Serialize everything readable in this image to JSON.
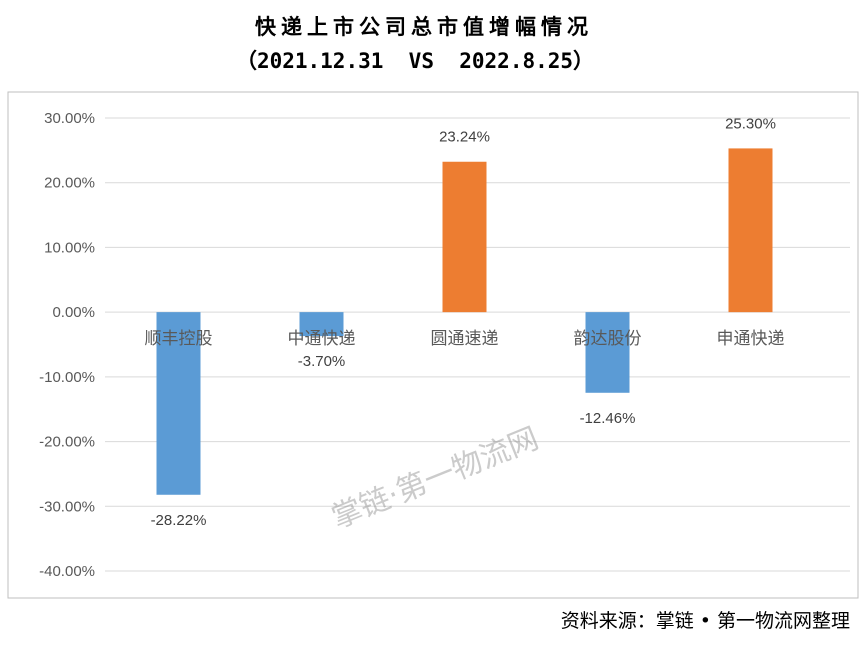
{
  "chart_data": {
    "type": "bar",
    "title": "快递上市公司总市值增幅情况",
    "subtitle": "（2021.12.31  VS  2022.8.25）",
    "categories": [
      "顺丰控股",
      "中通快递",
      "圆通速递",
      "韵达股份",
      "申通快递"
    ],
    "values": [
      -28.22,
      -3.7,
      23.24,
      -12.46,
      25.3
    ],
    "data_labels": [
      "-28.22%",
      "-3.70%",
      "23.24%",
      "-12.46%",
      "25.30%"
    ],
    "ylim": [
      -40,
      30
    ],
    "yticks": [
      30,
      20,
      10,
      0,
      -10,
      -20,
      -30,
      -40
    ],
    "ytick_labels": [
      "30.00%",
      "20.00%",
      "10.00%",
      "0.00%",
      "-10.00%",
      "-20.00%",
      "-30.00%",
      "-40.00%"
    ],
    "grid": true,
    "legend": "none",
    "colors": {
      "positive": "#ED7D31",
      "negative": "#5B9BD5",
      "gridline": "#D9D9D9",
      "frame": "#BFBFBF"
    }
  },
  "watermark": "掌链·第一物流网",
  "source": "资料来源：掌链 • 第一物流网整理"
}
